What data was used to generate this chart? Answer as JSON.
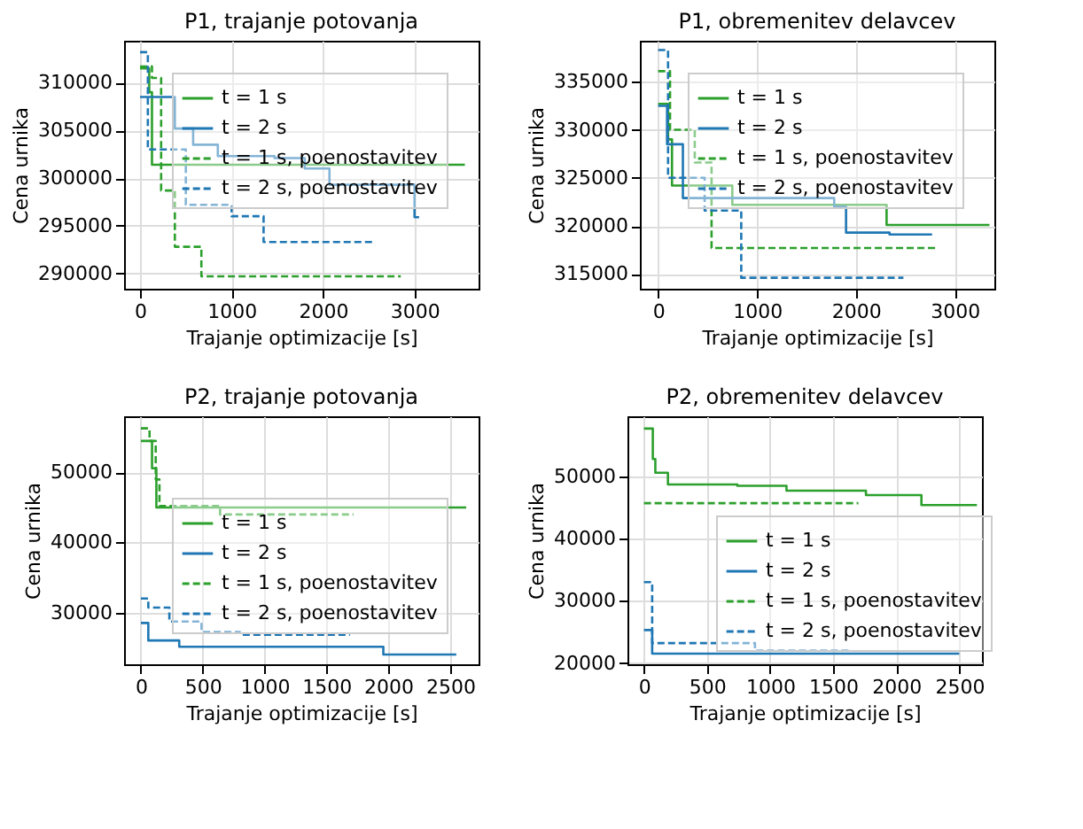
{
  "chart_data": [
    {
      "type": "step",
      "title": "P1, trajanje potovanja",
      "xlabel": "Trajanje optimizacije [s]",
      "ylabel": "Cena urnika",
      "xlim": [
        -175,
        3700
      ],
      "xticks": [
        0,
        1000,
        2000,
        3000
      ],
      "ylim": [
        288400,
        314400
      ],
      "yticks": [
        290000,
        295000,
        300000,
        305000,
        310000
      ],
      "grid": true,
      "legend": "top right",
      "series": [
        {
          "name": "t = 1 s",
          "color": "#2ca02c",
          "line_style": "solid",
          "x": [
            0,
            100,
            130,
            3550
          ],
          "values": [
            311500,
            309000,
            301400,
            301400
          ]
        },
        {
          "name": "t = 2 s",
          "color": "#1f77b4",
          "line_style": "solid",
          "x": [
            0,
            380,
            580,
            850,
            1470,
            1800,
            2070,
            3000,
            3050
          ],
          "values": [
            308500,
            305200,
            303500,
            302300,
            302100,
            301000,
            299300,
            295900,
            295900
          ]
        },
        {
          "name": "t = 1 s, poenostavitev",
          "color": "#2ca02c",
          "line_style": "dashed",
          "x": [
            0,
            130,
            230,
            380,
            670,
            2850
          ],
          "values": [
            311700,
            310500,
            298700,
            292800,
            289700,
            289700
          ]
        },
        {
          "name": "t = 2 s, poenostavitev",
          "color": "#1f77b4",
          "line_style": "dashed",
          "x": [
            0,
            85,
            500,
            1000,
            1350,
            2550
          ],
          "values": [
            313200,
            303000,
            297200,
            296000,
            293300,
            293300
          ]
        }
      ]
    },
    {
      "type": "step",
      "title": "P1, obremenitev delavcev",
      "xlabel": "Trajanje optimizacije [s]",
      "ylabel": "Cena urnika",
      "xlim": [
        -185,
        3400
      ],
      "xticks": [
        0,
        1000,
        2000,
        3000
      ],
      "ylim": [
        313460,
        339270
      ],
      "yticks": [
        315000,
        320000,
        325000,
        330000,
        335000
      ],
      "grid": true,
      "legend": "top right",
      "series": [
        {
          "name": "t = 1 s",
          "color": "#2ca02c",
          "line_style": "solid",
          "x": [
            0,
            100,
            140,
            750,
            2310,
            3350
          ],
          "values": [
            332700,
            329000,
            324200,
            322200,
            320100,
            320100
          ]
        },
        {
          "name": "t = 2 s",
          "color": "#1f77b4",
          "line_style": "solid",
          "x": [
            0,
            90,
            250,
            1780,
            1900,
            2340,
            2770
          ],
          "values": [
            332500,
            328500,
            322900,
            322000,
            319300,
            319100,
            319100
          ]
        },
        {
          "name": "t = 1 s, poenostavitev",
          "color": "#2ca02c",
          "line_style": "dashed",
          "x": [
            0,
            120,
            370,
            540,
            2800
          ],
          "values": [
            336100,
            330000,
            326600,
            317700,
            317700
          ]
        },
        {
          "name": "t = 2 s, poenostavitev",
          "color": "#1f77b4",
          "line_style": "dashed",
          "x": [
            0,
            100,
            470,
            840,
            2480
          ],
          "values": [
            338300,
            325000,
            321600,
            314600,
            314600
          ]
        }
      ]
    },
    {
      "type": "step",
      "title": "P2, trajanje potovanja",
      "xlabel": "Trajanje optimizacije [s]",
      "ylabel": "Cena urnika",
      "xlim": [
        -136,
        2730
      ],
      "xticks": [
        0,
        500,
        1000,
        1500,
        2000,
        2500
      ],
      "ylim": [
        22600,
        58030
      ],
      "yticks": [
        30000,
        40000,
        50000
      ],
      "grid": true,
      "legend": "bottom right",
      "series": [
        {
          "name": "t = 1 s",
          "color": "#2ca02c",
          "line_style": "solid",
          "x": [
            0,
            90,
            125,
            2630
          ],
          "values": [
            54500,
            50600,
            45000,
            45000
          ]
        },
        {
          "name": "t = 2 s",
          "color": "#1f77b4",
          "line_style": "solid",
          "x": [
            0,
            60,
            310,
            1960,
            2550
          ],
          "values": [
            28500,
            26000,
            25100,
            24000,
            24000
          ]
        },
        {
          "name": "t = 1 s, poenostavitev",
          "color": "#2ca02c",
          "line_style": "dashed",
          "x": [
            0,
            70,
            120,
            150,
            640,
            1720
          ],
          "values": [
            56300,
            54500,
            49000,
            45200,
            44000,
            44000
          ]
        },
        {
          "name": "t = 2 s, poenostavitev",
          "color": "#1f77b4",
          "line_style": "dashed",
          "x": [
            0,
            60,
            230,
            490,
            800,
            1690
          ],
          "values": [
            32000,
            30700,
            28700,
            27200,
            26800,
            26800
          ]
        }
      ]
    },
    {
      "type": "step",
      "title": "P2, obremenitev delavcev",
      "xlabel": "Trajanje optimizacije [s]",
      "ylabel": "Cena urnika",
      "xlim": [
        -131,
        2680
      ],
      "xticks": [
        0,
        500,
        1000,
        1500,
        2000,
        2500
      ],
      "ylim": [
        19800,
        59670
      ],
      "yticks": [
        20000,
        30000,
        40000,
        50000
      ],
      "grid": true,
      "legend": "right",
      "series": [
        {
          "name": "t = 1 s",
          "color": "#2ca02c",
          "line_style": "solid",
          "x": [
            0,
            70,
            90,
            190,
            740,
            1130,
            1760,
            2200,
            2640
          ],
          "values": [
            57700,
            52800,
            50600,
            48700,
            48500,
            47700,
            47000,
            45400,
            45400
          ]
        },
        {
          "name": "t = 2 s",
          "color": "#1f77b4",
          "line_style": "solid",
          "x": [
            0,
            65,
            2500
          ],
          "values": [
            25300,
            21500,
            21500
          ]
        },
        {
          "name": "t = 1 s, poenostavitev",
          "color": "#2ca02c",
          "line_style": "dashed",
          "x": [
            0,
            1700
          ],
          "values": [
            45700,
            45700
          ]
        },
        {
          "name": "t = 2 s, poenostavitev",
          "color": "#1f77b4",
          "line_style": "dashed",
          "x": [
            0,
            65,
            880,
            1640
          ],
          "values": [
            33000,
            23200,
            22000,
            22000
          ]
        }
      ]
    }
  ]
}
